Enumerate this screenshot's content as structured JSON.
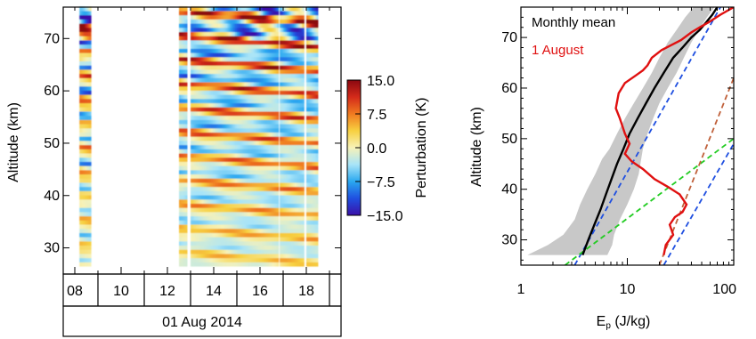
{
  "colors": {
    "monthly_mean": "#000000",
    "august_1": "#e01010",
    "envelope": "#c8c8c8",
    "ref_blue": "#1f4fe0",
    "ref_green": "#22cc22",
    "ref_brown": "#c0603a"
  },
  "chart_data": [
    {
      "type": "heatmap",
      "title": "",
      "ylabel": "Altitude (km)",
      "ylim": [
        25,
        76
      ],
      "yticks": [
        "30",
        "40",
        "50",
        "60",
        "70"
      ],
      "xlim": [
        7.5,
        19.5
      ],
      "xticks": [
        "08",
        "10",
        "12",
        "14",
        "16",
        "18"
      ],
      "date_label": "01 Aug 2014",
      "data_intervals_hours": [
        [
          8.2,
          8.7
        ],
        [
          12.5,
          12.85
        ],
        [
          13.0,
          16.8
        ],
        [
          16.85,
          17.9
        ],
        [
          18.0,
          18.5
        ]
      ],
      "colorbar": {
        "label": "Perturbation (K)",
        "range": [
          -15.0,
          15.0
        ],
        "ticks": [
          "15.0",
          "7.5",
          "0.0",
          "−7.5",
          "−15.0"
        ],
        "colormap": [
          "#3a10a8",
          "#1f4fe0",
          "#2aa8f0",
          "#a8e4f8",
          "#f7f2b8",
          "#f7d040",
          "#f07a20",
          "#d42a1a",
          "#8a0810"
        ]
      }
    },
    {
      "type": "line",
      "title": "",
      "xlabel_main": "E",
      "xlabel_sub": "p",
      "xlabel_unit": " (J/kg)",
      "ylabel": "Altitude (km)",
      "xscale": "log",
      "xlim": [
        1,
        100
      ],
      "ylim": [
        25,
        76
      ],
      "xticks": [
        "1",
        "10",
        "100"
      ],
      "yticks": [
        "30",
        "40",
        "50",
        "60",
        "70"
      ],
      "legend_placement": "top-left",
      "series": [
        {
          "name": "Monthly mean",
          "color": "#000000",
          "x": [
            3.8,
            4.3,
            4.9,
            5.6,
            6.3,
            7.1,
            8.0,
            9.2,
            10.5,
            12.5,
            15,
            18,
            22,
            27,
            33,
            40,
            48,
            55,
            63,
            70
          ],
          "y": [
            27,
            30,
            33,
            36,
            39,
            42,
            45,
            48,
            51,
            54,
            57,
            60,
            63,
            66,
            68,
            70,
            71.5,
            73,
            74.5,
            76
          ]
        },
        {
          "name": "1 August",
          "color": "#e01010",
          "x": [
            22,
            23,
            27,
            25,
            28,
            33,
            36,
            31,
            24,
            18,
            14,
            11,
            9.5,
            10.5,
            9.5,
            8.5,
            7.8,
            8.3,
            9.5,
            12,
            14,
            15.5,
            17,
            21,
            26,
            32,
            40,
            48,
            58,
            75,
            100
          ],
          "y": [
            27,
            29,
            31,
            33,
            34.5,
            35.5,
            37,
            39,
            40.5,
            42,
            44,
            45.5,
            47,
            49,
            51,
            54,
            56,
            59,
            61,
            62.5,
            63.5,
            64.5,
            66,
            67.5,
            68.5,
            69.5,
            71,
            72,
            73,
            74.5,
            76
          ]
        }
      ],
      "envelope": {
        "x_min": [
          1.15,
          1.8,
          2.5,
          3.2,
          3.6,
          4.2,
          5.0,
          5.8,
          6.8,
          8.0,
          9.5,
          11.5,
          14,
          17,
          20,
          24,
          29,
          35,
          42
        ],
        "x_max": [
          6.5,
          7.2,
          7.5,
          8.5,
          10.0,
          11.5,
          12.8,
          13.5,
          14,
          15.5,
          17.5,
          20,
          24,
          29,
          34,
          40,
          47,
          56,
          66
        ],
        "y": [
          27,
          29,
          31,
          34,
          37,
          40,
          43,
          46,
          48,
          51,
          54,
          57,
          60,
          63,
          66,
          69,
          71.5,
          74,
          76
        ]
      },
      "reference_lines": [
        {
          "color": "#1f4fe0",
          "x": [
            3.2,
            75
          ],
          "y": [
            25,
            76
          ]
        },
        {
          "color": "#22cc22",
          "x": [
            2.6,
            100
          ],
          "y": [
            25,
            50
          ]
        },
        {
          "color": "#1f4fe0",
          "x": [
            22,
            100
          ],
          "y": [
            25,
            49
          ]
        },
        {
          "color": "#c0603a",
          "x": [
            20,
            100
          ],
          "y": [
            25,
            62
          ]
        }
      ]
    }
  ]
}
